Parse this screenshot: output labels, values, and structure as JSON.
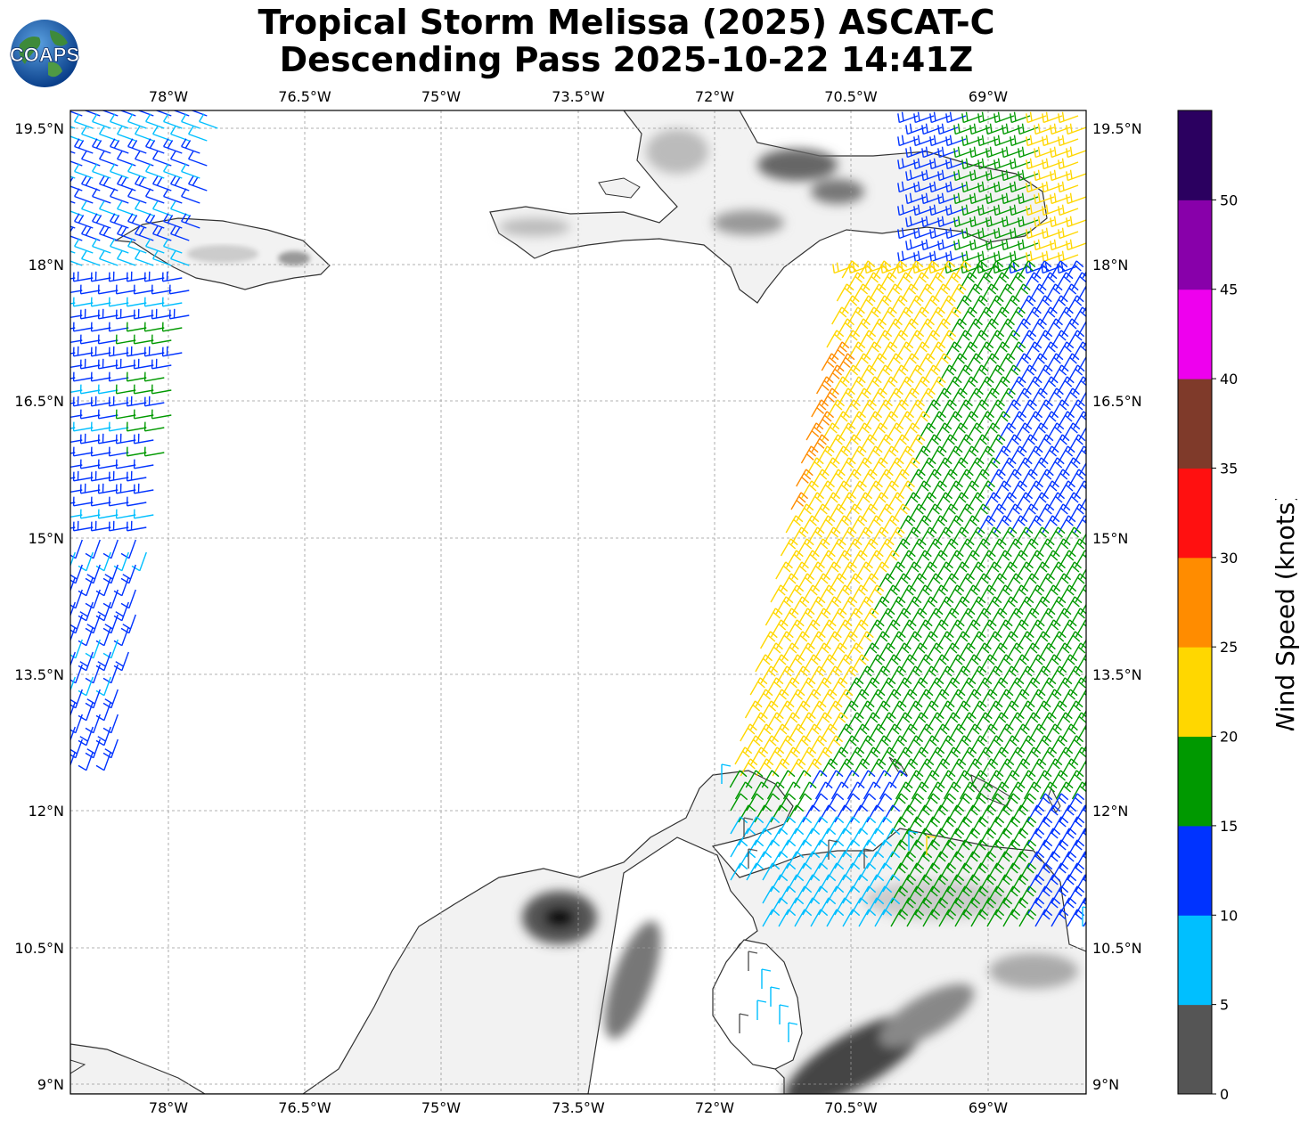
{
  "title": {
    "line1": "Tropical Storm Melissa (2025) ASCAT-C",
    "line2": "Descending Pass 2025-10-22 14:41Z"
  },
  "logo": {
    "text": "COAPS"
  },
  "map": {
    "lon_ticks": [
      "78°W",
      "76.5°W",
      "75°W",
      "73.5°W",
      "72°W",
      "70.5°W",
      "69°W"
    ],
    "lat_ticks": [
      "19.5°N",
      "18°N",
      "16.5°N",
      "15°N",
      "13.5°N",
      "12°N",
      "10.5°N",
      "9°N"
    ]
  },
  "colorbar": {
    "label": "Wind Speed (knots)",
    "ticks": [
      "0",
      "5",
      "10",
      "15",
      "20",
      "25",
      "30",
      "35",
      "40",
      "45",
      "50"
    ],
    "colors": [
      "#555555",
      "#00bfff",
      "#0033ff",
      "#009900",
      "#ffd700",
      "#ff8c00",
      "#ff1010",
      "#7f3a2a",
      "#ee00ee",
      "#8800aa",
      "#2b0060"
    ]
  }
}
